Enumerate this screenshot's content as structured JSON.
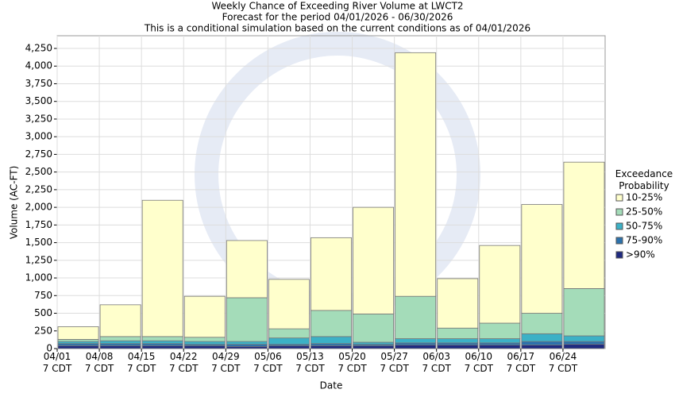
{
  "chart_data": {
    "type": "stacked_bar",
    "title": "Weekly Chance of Exceeding River Volume at LWCT2",
    "subtitles": [
      "Forecast for the period 04/01/2026 - 06/30/2026",
      "This is a conditional simulation based on the current conditions as of 04/01/2026"
    ],
    "x_label": "Date",
    "y_label": "Volume (AC-FT)",
    "legend_title": "Exceedance Probability",
    "categories": [
      "04/01\n7 CDT",
      "04/08\n7 CDT",
      "04/15\n7 CDT",
      "04/22\n7 CDT",
      "04/29\n7 CDT",
      "05/06\n7 CDT",
      "05/13\n7 CDT",
      "05/20\n7 CDT",
      "05/27\n7 CDT",
      "06/03\n7 CDT",
      "06/10\n7 CDT",
      "06/17\n7 CDT",
      "06/24\n7 CDT"
    ],
    "series": [
      {
        "name": ">90%",
        "color": "#1f2a80",
        "values": [
          40,
          40,
          40,
          40,
          30,
          40,
          40,
          40,
          50,
          50,
          50,
          50,
          60
        ]
      },
      {
        "name": "75-90%",
        "color": "#2c72ad",
        "values": [
          30,
          30,
          30,
          20,
          30,
          20,
          30,
          20,
          30,
          30,
          30,
          50,
          40
        ]
      },
      {
        "name": "50-75%",
        "color": "#3cb1c6",
        "values": [
          30,
          40,
          40,
          40,
          40,
          90,
          100,
          30,
          60,
          60,
          60,
          110,
          80
        ]
      },
      {
        "name": "25-50%",
        "color": "#a4dcb9",
        "values": [
          30,
          60,
          60,
          60,
          620,
          130,
          370,
          400,
          600,
          150,
          220,
          290,
          670
        ]
      },
      {
        "name": "10-25%",
        "color": "#ffffcc",
        "values": [
          180,
          450,
          1930,
          580,
          810,
          700,
          1030,
          1510,
          3450,
          700,
          1100,
          1540,
          1790
        ]
      }
    ],
    "ylim": [
      0,
      4430
    ],
    "yticks": [
      0,
      250,
      500,
      750,
      {
        "value": 1000,
        "label": "1,000"
      },
      {
        "value": 1250,
        "label": "1,250"
      },
      {
        "value": 1500,
        "label": "1,500"
      },
      {
        "value": 1750,
        "label": "1,750"
      },
      {
        "value": 2000,
        "label": "2,000"
      },
      {
        "value": 2250,
        "label": "2,250"
      },
      {
        "value": 2500,
        "label": "2,500"
      },
      {
        "value": 2750,
        "label": "2,750"
      },
      {
        "value": 3000,
        "label": "3,000"
      },
      {
        "value": 3250,
        "label": "3,250"
      },
      {
        "value": 3500,
        "label": "3,500"
      },
      {
        "value": 3750,
        "label": "3,750"
      },
      {
        "value": 4000,
        "label": "4,000"
      },
      {
        "value": 4250,
        "label": "4,250"
      }
    ],
    "grid": true
  }
}
